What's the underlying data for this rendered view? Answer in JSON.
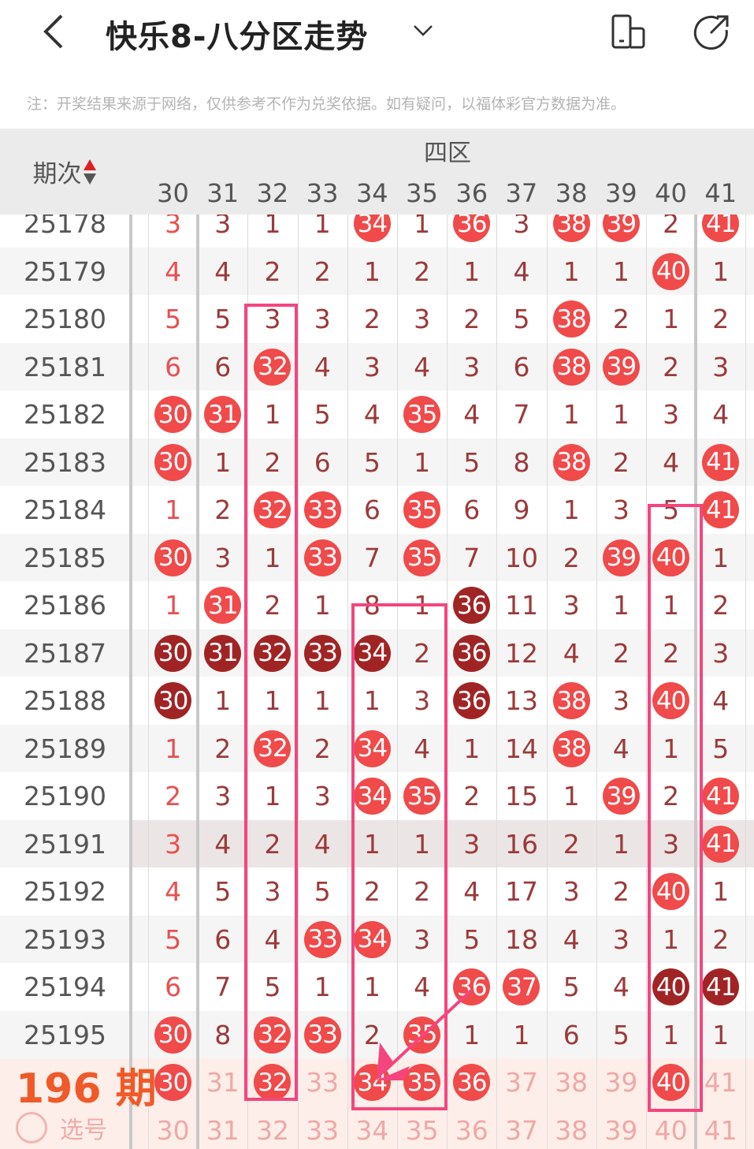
{
  "header": {
    "title": "快乐8-八分区走势",
    "back_icon": "chevron-left-icon",
    "dropdown_icon": "chevron-down-icon",
    "icons": [
      "phone-rotate-icon",
      "share-icon"
    ]
  },
  "note": "注：开奖结果来源于网络，仅供参考不作为兑奖依据。如有疑问，以福体彩官方数据为准。",
  "table": {
    "period_header": "期次",
    "zone_label": "四区",
    "columns": [
      "30",
      "31",
      "32",
      "33",
      "34",
      "35",
      "36",
      "37",
      "38",
      "39",
      "40",
      "41"
    ],
    "colors": {
      "hit": "#f04a4a",
      "repeat_hit": "#a12424",
      "miss_text": "#9b3a3a",
      "miss_text_first": "#e8504f",
      "highlight": "#f5457e",
      "predict_bg": "#fdeee9"
    },
    "rows": [
      {
        "period": "25178",
        "values": [
          "3",
          "3",
          "1",
          "1",
          "34",
          "1",
          "36",
          "3",
          "38",
          "39",
          "2",
          "41"
        ],
        "hits": [
          34,
          36,
          38,
          39,
          41
        ],
        "dark": []
      },
      {
        "period": "25179",
        "values": [
          "4",
          "4",
          "2",
          "2",
          "1",
          "2",
          "1",
          "4",
          "1",
          "1",
          "40",
          "1"
        ],
        "hits": [
          40
        ],
        "dark": []
      },
      {
        "period": "25180",
        "values": [
          "5",
          "5",
          "3",
          "3",
          "2",
          "3",
          "2",
          "5",
          "38",
          "2",
          "1",
          "2"
        ],
        "hits": [
          38
        ],
        "dark": []
      },
      {
        "period": "25181",
        "values": [
          "6",
          "6",
          "32",
          "4",
          "3",
          "4",
          "3",
          "6",
          "38",
          "39",
          "2",
          "3"
        ],
        "hits": [
          32,
          38,
          39
        ],
        "dark": []
      },
      {
        "period": "25182",
        "values": [
          "30",
          "31",
          "1",
          "5",
          "4",
          "35",
          "4",
          "7",
          "1",
          "1",
          "3",
          "4"
        ],
        "hits": [
          30,
          31,
          35
        ],
        "dark": []
      },
      {
        "period": "25183",
        "values": [
          "30",
          "1",
          "2",
          "6",
          "5",
          "1",
          "5",
          "8",
          "38",
          "2",
          "4",
          "41"
        ],
        "hits": [
          30,
          38,
          41
        ],
        "dark": []
      },
      {
        "period": "25184",
        "values": [
          "1",
          "2",
          "32",
          "33",
          "6",
          "35",
          "6",
          "9",
          "1",
          "3",
          "5",
          "41"
        ],
        "hits": [
          32,
          33,
          35,
          41
        ],
        "dark": []
      },
      {
        "period": "25185",
        "values": [
          "30",
          "3",
          "1",
          "33",
          "7",
          "35",
          "7",
          "10",
          "2",
          "39",
          "40",
          "1"
        ],
        "hits": [
          30,
          33,
          35,
          39,
          40
        ],
        "dark": []
      },
      {
        "period": "25186",
        "values": [
          "1",
          "31",
          "2",
          "1",
          "8",
          "1",
          "36",
          "11",
          "3",
          "1",
          "1",
          "2"
        ],
        "hits": [
          31,
          36
        ],
        "dark": [
          36
        ]
      },
      {
        "period": "25187",
        "values": [
          "30",
          "31",
          "32",
          "33",
          "34",
          "2",
          "36",
          "12",
          "4",
          "2",
          "2",
          "3"
        ],
        "hits": [
          30,
          31,
          32,
          33,
          34,
          36
        ],
        "dark": [
          30,
          31,
          32,
          33,
          34,
          36
        ]
      },
      {
        "period": "25188",
        "values": [
          "30",
          "1",
          "1",
          "1",
          "1",
          "3",
          "36",
          "13",
          "38",
          "3",
          "40",
          "4"
        ],
        "hits": [
          30,
          36,
          38,
          40
        ],
        "dark": [
          30,
          36
        ]
      },
      {
        "period": "25189",
        "values": [
          "1",
          "2",
          "32",
          "2",
          "34",
          "4",
          "1",
          "14",
          "38",
          "4",
          "1",
          "5"
        ],
        "hits": [
          32,
          34,
          38
        ],
        "dark": []
      },
      {
        "period": "25190",
        "values": [
          "2",
          "3",
          "1",
          "3",
          "34",
          "35",
          "2",
          "15",
          "1",
          "39",
          "2",
          "41"
        ],
        "hits": [
          34,
          35,
          39,
          41
        ],
        "dark": []
      },
      {
        "period": "25191",
        "values": [
          "3",
          "4",
          "2",
          "4",
          "1",
          "1",
          "3",
          "16",
          "2",
          "1",
          "3",
          "41"
        ],
        "hits": [
          41
        ],
        "dark": []
      },
      {
        "period": "25192",
        "values": [
          "4",
          "5",
          "3",
          "5",
          "2",
          "2",
          "4",
          "17",
          "3",
          "2",
          "40",
          "1"
        ],
        "hits": [
          40
        ],
        "dark": []
      },
      {
        "period": "25193",
        "values": [
          "5",
          "6",
          "4",
          "33",
          "34",
          "3",
          "5",
          "18",
          "4",
          "3",
          "1",
          "2"
        ],
        "hits": [
          33,
          34
        ],
        "dark": []
      },
      {
        "period": "25194",
        "values": [
          "6",
          "7",
          "5",
          "1",
          "1",
          "4",
          "36",
          "37",
          "5",
          "4",
          "40",
          "41"
        ],
        "hits": [
          36,
          37,
          40,
          41
        ],
        "dark": [
          40,
          41
        ]
      },
      {
        "period": "25195",
        "values": [
          "30",
          "8",
          "32",
          "33",
          "2",
          "35",
          "1",
          "1",
          "6",
          "5",
          "1",
          "1"
        ],
        "hits": [
          30,
          32,
          33,
          35
        ],
        "dark": []
      }
    ],
    "prediction": {
      "label": "196 期",
      "picked": [
        30,
        32,
        34,
        35,
        36,
        40
      ]
    },
    "select_row": {
      "label": "选号"
    }
  }
}
